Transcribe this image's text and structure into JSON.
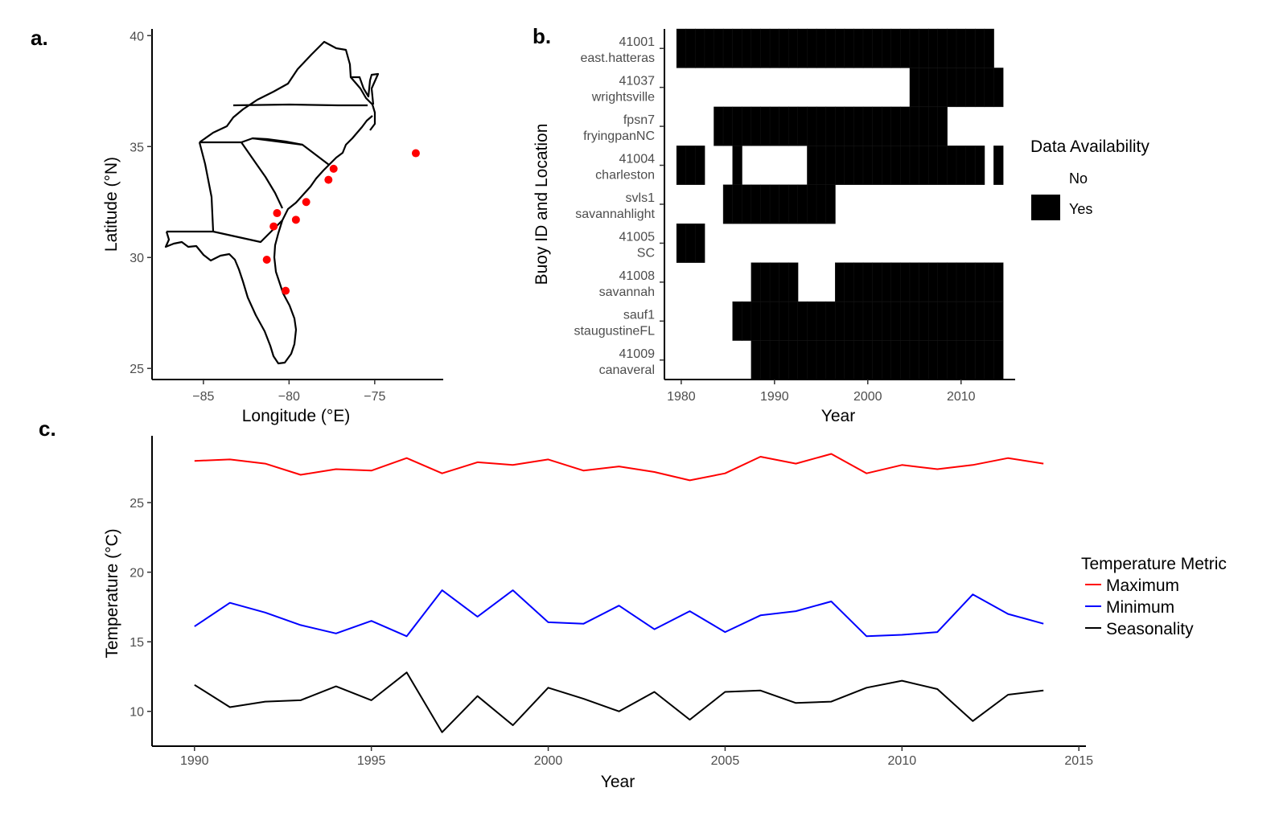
{
  "chart_data": [
    {
      "panel_label": "a.",
      "type": "scatter",
      "xlabel": "Longitude (°E)",
      "ylabel": "Latitude (°N)",
      "xlim": [
        -88,
        -71
      ],
      "ylim": [
        24.5,
        40.3
      ],
      "xticks": [
        -85,
        -80,
        -75
      ],
      "xtick_labels": [
        "−85",
        "−80",
        "−75"
      ],
      "yticks": [
        25,
        30,
        35,
        40
      ],
      "ytick_labels": [
        "25",
        "30",
        "35",
        "40"
      ],
      "points_color": "#ff0000",
      "points": [
        {
          "x": -72.6,
          "y": 34.7
        },
        {
          "x": -77.4,
          "y": 34.0
        },
        {
          "x": -77.7,
          "y": 33.5
        },
        {
          "x": -79.0,
          "y": 32.5
        },
        {
          "x": -80.7,
          "y": 32.0
        },
        {
          "x": -79.6,
          "y": 31.7
        },
        {
          "x": -80.9,
          "y": 31.4
        },
        {
          "x": -81.3,
          "y": 29.9
        },
        {
          "x": -80.2,
          "y": 28.5
        }
      ]
    },
    {
      "panel_label": "b.",
      "type": "heatmap",
      "xlabel": "Year",
      "ylabel": "Buoy ID and Location",
      "xlim": [
        1978.2,
        2015.8
      ],
      "xticks": [
        1980,
        1990,
        2000,
        2010
      ],
      "xtick_labels": [
        "1980",
        "1990",
        "2000",
        "2010"
      ],
      "rows": [
        {
          "id": "41001",
          "location": "east.hatteras",
          "years": [
            [
              1979.5,
              2013.5
            ]
          ]
        },
        {
          "id": "41037",
          "location": "wrightsville",
          "years": [
            [
              2004.5,
              2014.5
            ]
          ]
        },
        {
          "id": "fpsn7",
          "location": "fryingpanNC",
          "years": [
            [
              1983.5,
              2008.5
            ]
          ]
        },
        {
          "id": "41004",
          "location": "charleston",
          "years": [
            [
              1979.5,
              1982.5
            ],
            [
              1985.5,
              1986.5
            ],
            [
              1993.5,
              2012.5
            ],
            [
              2013.5,
              2014.5
            ]
          ]
        },
        {
          "id": "svls1",
          "location": "savannahlight",
          "years": [
            [
              1984.5,
              1996.5
            ]
          ]
        },
        {
          "id": "41005",
          "location": "SC",
          "years": [
            [
              1979.5,
              1982.5
            ]
          ]
        },
        {
          "id": "41008",
          "location": "savannah",
          "years": [
            [
              1987.5,
              1992.5
            ],
            [
              1996.5,
              2014.5
            ]
          ]
        },
        {
          "id": "sauf1",
          "location": "staugustineFL",
          "years": [
            [
              1985.5,
              2014.5
            ]
          ]
        },
        {
          "id": "41009",
          "location": "canaveral",
          "years": [
            [
              1987.5,
              2014.5
            ]
          ]
        }
      ],
      "legend": {
        "title": "Data Availability",
        "entries": [
          {
            "label": "No",
            "color": "#ffffff"
          },
          {
            "label": "Yes",
            "color": "#000000"
          }
        ]
      }
    },
    {
      "panel_label": "c.",
      "type": "line",
      "xlabel": "Year",
      "ylabel": "Temperature (°C)",
      "xlim": [
        1988.8,
        2015.2
      ],
      "ylim": [
        7.5,
        29.8
      ],
      "xticks": [
        1990,
        1995,
        2000,
        2005,
        2010,
        2015
      ],
      "xtick_labels": [
        "1990",
        "1995",
        "2000",
        "2005",
        "2010",
        "2015"
      ],
      "yticks": [
        10,
        15,
        20,
        25
      ],
      "ytick_labels": [
        "10",
        "15",
        "20",
        "25"
      ],
      "x": [
        1990,
        1991,
        1992,
        1993,
        1994,
        1995,
        1996,
        1997,
        1998,
        1999,
        2000,
        2001,
        2002,
        2003,
        2004,
        2005,
        2006,
        2007,
        2008,
        2009,
        2010,
        2011,
        2012,
        2013,
        2014
      ],
      "series": [
        {
          "name": "Maximum",
          "color": "#ff0000",
          "values": [
            28.0,
            28.1,
            27.8,
            27.0,
            27.4,
            27.3,
            28.2,
            27.1,
            27.9,
            27.7,
            28.1,
            27.3,
            27.6,
            27.2,
            26.6,
            27.1,
            28.3,
            27.8,
            28.5,
            27.1,
            27.7,
            27.4,
            27.7,
            28.2,
            27.8
          ]
        },
        {
          "name": "Minimum",
          "color": "#0000ff",
          "values": [
            16.1,
            17.8,
            17.1,
            16.2,
            15.6,
            16.5,
            15.4,
            18.7,
            16.8,
            18.7,
            16.4,
            16.3,
            17.6,
            15.9,
            17.2,
            15.7,
            16.9,
            17.2,
            17.9,
            15.4,
            15.5,
            15.7,
            18.4,
            17.0,
            16.3
          ]
        },
        {
          "name": "Seasonality",
          "color": "#000000",
          "values": [
            11.9,
            10.3,
            10.7,
            10.8,
            11.8,
            10.8,
            12.8,
            8.5,
            11.1,
            9.0,
            11.7,
            10.9,
            10.0,
            11.4,
            9.4,
            11.4,
            11.5,
            10.6,
            10.7,
            11.7,
            12.2,
            11.6,
            9.3,
            11.2,
            11.5
          ]
        }
      ],
      "legend": {
        "title": "Temperature Metric",
        "placement": "right"
      }
    }
  ]
}
